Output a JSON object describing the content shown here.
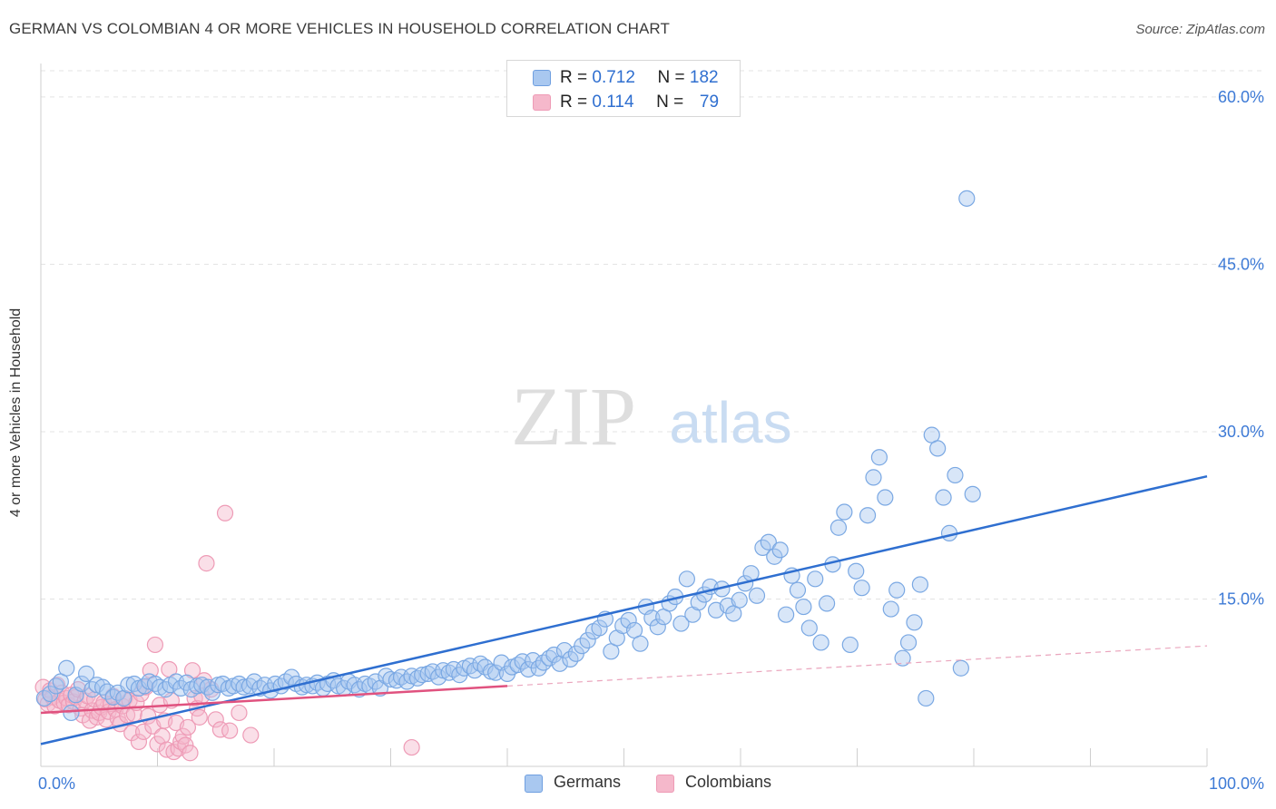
{
  "title": "GERMAN VS COLOMBIAN 4 OR MORE VEHICLES IN HOUSEHOLD CORRELATION CHART",
  "source": "Source: ZipAtlas.com",
  "watermark": {
    "zip": "ZIP",
    "atlas": "atlas"
  },
  "legend_top": {
    "rows": [
      {
        "r_label": "R =",
        "r_value": "0.712",
        "n_label": "N =",
        "n_value": "182",
        "color": "#a9c8f0"
      },
      {
        "r_label": "R =",
        "r_value": "0.114",
        "n_label": "N =",
        "n_value": "79",
        "color": "#f5b8cb"
      }
    ]
  },
  "legend_bottom": {
    "germans": "Germans",
    "colombians": "Colombians"
  },
  "colors": {
    "german": "#2f6fd0",
    "german_fill": "#a9c8f0",
    "colombian": "#e0527f",
    "colombian_fill": "#f5b8cb",
    "tick_text": "#3d7ad6"
  },
  "chart_data": {
    "type": "scatter",
    "title": "GERMAN VS COLOMBIAN 4 OR MORE VEHICLES IN HOUSEHOLD CORRELATION CHART",
    "xlabel": "",
    "ylabel": "4 or more Vehicles in Household",
    "xlim": [
      0,
      100
    ],
    "ylim": [
      0,
      63
    ],
    "x_tick_labels": [
      "0.0%",
      "100.0%"
    ],
    "y_ticks": [
      15,
      30,
      45,
      60
    ],
    "y_tick_labels": [
      "15.0%",
      "30.0%",
      "45.0%",
      "60.0%"
    ],
    "grid": true,
    "legend_position": "top-center",
    "series": [
      {
        "name": "Germans",
        "R": 0.712,
        "N": 182,
        "trend": {
          "x": [
            0,
            100
          ],
          "y": [
            2.0,
            26.0
          ]
        },
        "points": [
          [
            0.3,
            6.1
          ],
          [
            0.8,
            6.5
          ],
          [
            1.3,
            7.2
          ],
          [
            1.7,
            7.6
          ],
          [
            2.2,
            8.8
          ],
          [
            2.6,
            4.8
          ],
          [
            3.0,
            6.4
          ],
          [
            3.5,
            7.4
          ],
          [
            3.9,
            8.3
          ],
          [
            4.4,
            6.9
          ],
          [
            4.8,
            7.3
          ],
          [
            5.3,
            7.1
          ],
          [
            5.7,
            6.7
          ],
          [
            6.2,
            6.2
          ],
          [
            6.6,
            6.6
          ],
          [
            7.1,
            6.1
          ],
          [
            7.5,
            7.3
          ],
          [
            8.0,
            7.4
          ],
          [
            8.4,
            7.0
          ],
          [
            8.9,
            7.2
          ],
          [
            9.3,
            7.6
          ],
          [
            9.8,
            7.4
          ],
          [
            10.2,
            7.1
          ],
          [
            10.7,
            6.9
          ],
          [
            11.1,
            7.3
          ],
          [
            11.6,
            7.6
          ],
          [
            12.0,
            7.0
          ],
          [
            12.5,
            7.5
          ],
          [
            12.9,
            6.9
          ],
          [
            13.4,
            7.2
          ],
          [
            13.8,
            7.3
          ],
          [
            14.3,
            7.1
          ],
          [
            14.7,
            6.6
          ],
          [
            15.2,
            7.3
          ],
          [
            15.6,
            7.4
          ],
          [
            16.1,
            7.0
          ],
          [
            16.5,
            7.2
          ],
          [
            17.0,
            7.4
          ],
          [
            17.4,
            7.1
          ],
          [
            17.9,
            7.2
          ],
          [
            18.3,
            7.6
          ],
          [
            18.8,
            7.0
          ],
          [
            19.2,
            7.3
          ],
          [
            19.7,
            6.8
          ],
          [
            20.1,
            7.4
          ],
          [
            20.6,
            7.2
          ],
          [
            21.0,
            7.6
          ],
          [
            21.5,
            8.0
          ],
          [
            21.9,
            7.4
          ],
          [
            22.4,
            7.1
          ],
          [
            22.8,
            7.3
          ],
          [
            23.3,
            7.2
          ],
          [
            23.7,
            7.5
          ],
          [
            24.2,
            7.0
          ],
          [
            24.6,
            7.4
          ],
          [
            25.1,
            7.7
          ],
          [
            25.5,
            7.2
          ],
          [
            26.0,
            7.0
          ],
          [
            26.4,
            7.6
          ],
          [
            26.9,
            7.3
          ],
          [
            27.3,
            6.9
          ],
          [
            27.8,
            7.4
          ],
          [
            28.2,
            7.2
          ],
          [
            28.7,
            7.6
          ],
          [
            29.1,
            7.0
          ],
          [
            29.6,
            8.1
          ],
          [
            30.0,
            7.8
          ],
          [
            30.5,
            7.7
          ],
          [
            30.9,
            8.0
          ],
          [
            31.4,
            7.6
          ],
          [
            31.8,
            8.1
          ],
          [
            32.3,
            7.9
          ],
          [
            32.7,
            8.2
          ],
          [
            33.2,
            8.3
          ],
          [
            33.6,
            8.5
          ],
          [
            34.1,
            8.0
          ],
          [
            34.5,
            8.6
          ],
          [
            35.0,
            8.4
          ],
          [
            35.4,
            8.7
          ],
          [
            35.9,
            8.2
          ],
          [
            36.3,
            8.8
          ],
          [
            36.8,
            9.0
          ],
          [
            37.2,
            8.6
          ],
          [
            37.7,
            9.2
          ],
          [
            38.1,
            8.9
          ],
          [
            38.6,
            8.5
          ],
          [
            39.0,
            8.4
          ],
          [
            39.5,
            9.3
          ],
          [
            40.0,
            8.3
          ],
          [
            40.4,
            8.9
          ],
          [
            40.9,
            9.1
          ],
          [
            41.3,
            9.4
          ],
          [
            41.8,
            8.7
          ],
          [
            42.2,
            9.5
          ],
          [
            42.7,
            8.8
          ],
          [
            43.1,
            9.3
          ],
          [
            43.6,
            9.7
          ],
          [
            44.0,
            10.0
          ],
          [
            44.5,
            9.2
          ],
          [
            44.9,
            10.4
          ],
          [
            45.4,
            9.6
          ],
          [
            45.9,
            10.1
          ],
          [
            46.4,
            10.8
          ],
          [
            46.9,
            11.3
          ],
          [
            47.4,
            12.1
          ],
          [
            47.9,
            12.4
          ],
          [
            48.4,
            13.2
          ],
          [
            48.9,
            10.3
          ],
          [
            49.4,
            11.5
          ],
          [
            49.9,
            12.6
          ],
          [
            50.4,
            13.1
          ],
          [
            50.9,
            12.2
          ],
          [
            51.4,
            11.0
          ],
          [
            51.9,
            14.3
          ],
          [
            52.4,
            13.3
          ],
          [
            52.9,
            12.5
          ],
          [
            53.4,
            13.4
          ],
          [
            53.9,
            14.6
          ],
          [
            54.4,
            15.2
          ],
          [
            54.9,
            12.8
          ],
          [
            55.4,
            16.8
          ],
          [
            55.9,
            13.6
          ],
          [
            56.4,
            14.7
          ],
          [
            56.9,
            15.4
          ],
          [
            57.4,
            16.1
          ],
          [
            57.9,
            14.0
          ],
          [
            58.4,
            15.9
          ],
          [
            58.9,
            14.4
          ],
          [
            59.4,
            13.7
          ],
          [
            59.9,
            14.9
          ],
          [
            60.4,
            16.4
          ],
          [
            60.9,
            17.3
          ],
          [
            61.4,
            15.3
          ],
          [
            61.9,
            19.6
          ],
          [
            62.4,
            20.1
          ],
          [
            62.9,
            18.8
          ],
          [
            63.4,
            19.4
          ],
          [
            63.9,
            13.6
          ],
          [
            64.4,
            17.1
          ],
          [
            64.9,
            15.8
          ],
          [
            65.4,
            14.3
          ],
          [
            65.9,
            12.4
          ],
          [
            66.4,
            16.8
          ],
          [
            66.9,
            11.1
          ],
          [
            67.4,
            14.6
          ],
          [
            67.9,
            18.1
          ],
          [
            68.4,
            21.4
          ],
          [
            68.9,
            22.8
          ],
          [
            69.4,
            10.9
          ],
          [
            69.9,
            17.5
          ],
          [
            70.4,
            16.0
          ],
          [
            70.9,
            22.5
          ],
          [
            71.4,
            25.9
          ],
          [
            71.9,
            27.7
          ],
          [
            72.4,
            24.1
          ],
          [
            72.9,
            14.1
          ],
          [
            73.4,
            15.8
          ],
          [
            73.9,
            9.7
          ],
          [
            74.4,
            11.1
          ],
          [
            74.9,
            12.9
          ],
          [
            75.4,
            16.3
          ],
          [
            75.9,
            6.1
          ],
          [
            76.4,
            29.7
          ],
          [
            76.9,
            28.5
          ],
          [
            77.4,
            24.1
          ],
          [
            77.9,
            20.9
          ],
          [
            78.4,
            26.1
          ],
          [
            78.9,
            8.8
          ],
          [
            79.4,
            50.9
          ],
          [
            79.9,
            24.4
          ]
        ]
      },
      {
        "name": "Colombians",
        "R": 0.114,
        "N": 79,
        "trend": {
          "x": [
            0,
            40
          ],
          "y": [
            4.8,
            7.2
          ]
        },
        "trend_dashed": {
          "x": [
            40,
            100
          ],
          "y": [
            7.2,
            10.8
          ]
        },
        "points": [
          [
            0.2,
            7.1
          ],
          [
            0.4,
            6.0
          ],
          [
            0.6,
            5.6
          ],
          [
            0.8,
            6.8
          ],
          [
            1.0,
            6.2
          ],
          [
            1.2,
            5.4
          ],
          [
            1.4,
            7.3
          ],
          [
            1.6,
            5.9
          ],
          [
            1.8,
            6.6
          ],
          [
            2.0,
            5.7
          ],
          [
            2.2,
            6.1
          ],
          [
            2.4,
            5.5
          ],
          [
            2.6,
            6.4
          ],
          [
            2.8,
            5.8
          ],
          [
            3.0,
            6.2
          ],
          [
            3.2,
            6.9
          ],
          [
            3.4,
            5.2
          ],
          [
            3.6,
            4.6
          ],
          [
            3.8,
            5.9
          ],
          [
            4.0,
            6.3
          ],
          [
            4.2,
            4.1
          ],
          [
            4.4,
            5.0
          ],
          [
            4.6,
            6.0
          ],
          [
            4.8,
            4.4
          ],
          [
            5.0,
            4.8
          ],
          [
            5.2,
            5.3
          ],
          [
            5.4,
            5.7
          ],
          [
            5.6,
            4.2
          ],
          [
            5.8,
            4.9
          ],
          [
            6.0,
            5.6
          ],
          [
            6.2,
            6.3
          ],
          [
            6.4,
            5.1
          ],
          [
            6.6,
            4.3
          ],
          [
            6.8,
            3.8
          ],
          [
            7.0,
            5.4
          ],
          [
            7.2,
            6.1
          ],
          [
            7.4,
            4.6
          ],
          [
            7.6,
            5.9
          ],
          [
            7.8,
            3.0
          ],
          [
            8.0,
            4.7
          ],
          [
            8.2,
            5.7
          ],
          [
            8.4,
            2.2
          ],
          [
            8.6,
            6.5
          ],
          [
            8.8,
            3.1
          ],
          [
            9.0,
            7.1
          ],
          [
            9.2,
            4.5
          ],
          [
            9.4,
            8.6
          ],
          [
            9.6,
            3.6
          ],
          [
            9.8,
            10.9
          ],
          [
            10.0,
            2.0
          ],
          [
            10.2,
            5.5
          ],
          [
            10.4,
            2.7
          ],
          [
            10.6,
            4.1
          ],
          [
            10.8,
            1.5
          ],
          [
            11.0,
            8.7
          ],
          [
            11.2,
            5.9
          ],
          [
            11.4,
            1.3
          ],
          [
            11.6,
            3.9
          ],
          [
            11.8,
            1.6
          ],
          [
            12.0,
            2.2
          ],
          [
            12.2,
            2.7
          ],
          [
            12.4,
            1.9
          ],
          [
            12.6,
            3.5
          ],
          [
            12.8,
            1.2
          ],
          [
            13.0,
            8.6
          ],
          [
            13.2,
            6.1
          ],
          [
            13.4,
            5.2
          ],
          [
            13.6,
            4.4
          ],
          [
            13.8,
            6.3
          ],
          [
            14.0,
            7.7
          ],
          [
            14.2,
            18.2
          ],
          [
            14.6,
            6.9
          ],
          [
            15.0,
            4.2
          ],
          [
            15.4,
            3.3
          ],
          [
            15.8,
            22.7
          ],
          [
            16.2,
            3.2
          ],
          [
            17.0,
            4.8
          ],
          [
            18.0,
            2.8
          ],
          [
            31.8,
            1.7
          ]
        ]
      }
    ]
  }
}
